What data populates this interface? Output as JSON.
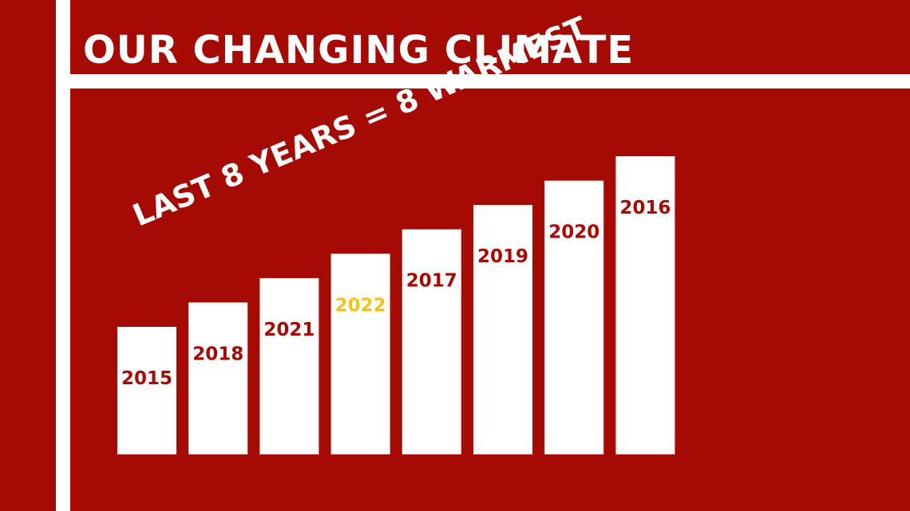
{
  "header": {
    "title": "OUR CHANGING CLIMATE"
  },
  "colors": {
    "background": "#a50a05",
    "bar": "#ffffff",
    "label": "#a50a05",
    "highlight": "#f3c318"
  },
  "chart_data": {
    "type": "bar",
    "title": "OUR CHANGING CLIMATE",
    "annotation": "LAST 8 YEARS = 8 WARMEST",
    "categories": [
      "2015",
      "2018",
      "2021",
      "2022",
      "2017",
      "2019",
      "2020",
      "2016"
    ],
    "values": [
      1,
      2,
      3,
      4,
      5,
      6,
      7,
      8
    ],
    "highlighted": "2022",
    "xlabel": "",
    "ylabel": "",
    "grid": false,
    "legend": "none"
  }
}
